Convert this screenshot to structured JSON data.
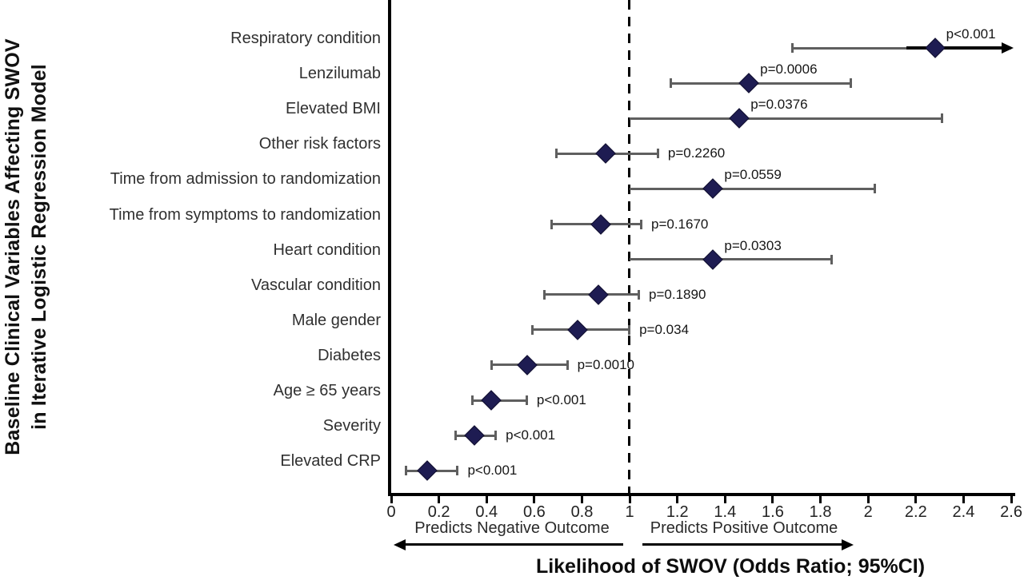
{
  "figure": {
    "y_axis_title_line1": "Baseline Clinical Variables Affecting SWOV",
    "y_axis_title_line2": "in Iterative Logistic Regression Model",
    "x_axis_title": "Likelihood of SWOV (Odds Ratio; 95%CI)",
    "negative_label": "Predicts Negative Outcome",
    "positive_label": "Predicts Positive Outcome"
  },
  "colors": {
    "diamond": "#1e1c52",
    "ci_line": "#5f5f5f",
    "axis": "#000000",
    "text": "#303030"
  },
  "chart_data": {
    "type": "scatter",
    "variant": "forest-plot",
    "title": "",
    "xlabel": "Likelihood of SWOV (Odds Ratio; 95%CI)",
    "ylabel": "Baseline Clinical Variables Affecting SWOV in Iterative Logistic Regression Model",
    "xlim": [
      0,
      2.6
    ],
    "x_ticks": [
      {
        "value": 0,
        "label": "0"
      },
      {
        "value": 0.2,
        "label": "0.2"
      },
      {
        "value": 0.4,
        "label": "0.4"
      },
      {
        "value": 0.6,
        "label": "0.6"
      },
      {
        "value": 0.8,
        "label": "0.8"
      },
      {
        "value": 1,
        "label": "1"
      },
      {
        "value": 1.2,
        "label": "1.2"
      },
      {
        "value": 1.4,
        "label": "1.4"
      },
      {
        "value": 1.6,
        "label": "1.6"
      },
      {
        "value": 1.8,
        "label": "1.8"
      },
      {
        "value": 2,
        "label": "2"
      },
      {
        "value": 2.2,
        "label": "2.2"
      },
      {
        "value": 2.4,
        "label": "2.4"
      },
      {
        "value": 2.6,
        "label": "2.6"
      }
    ],
    "reference_line_x": 1,
    "grid": false,
    "legend": "none",
    "rows": [
      {
        "label": "Respiratory condition",
        "or": 2.28,
        "ci_low": 1.68,
        "ci_high": 2.6,
        "ci_high_offscale": true,
        "p": "p<0.001",
        "p_pos": "above",
        "cap_low": true,
        "cap_high": false,
        "arrow_from": 2.16
      },
      {
        "label": "Lenzilumab",
        "or": 1.5,
        "ci_low": 1.17,
        "ci_high": 1.93,
        "ci_high_offscale": false,
        "p": "p=0.0006",
        "p_pos": "above",
        "cap_low": true,
        "cap_high": true
      },
      {
        "label": "Elevated BMI",
        "or": 1.46,
        "ci_low": 1.0,
        "ci_high": 2.31,
        "ci_high_offscale": false,
        "p": "p=0.0376",
        "p_pos": "above",
        "cap_low": false,
        "cap_high": true
      },
      {
        "label": "Other risk factors",
        "or": 0.9,
        "ci_low": 0.69,
        "ci_high": 1.12,
        "ci_high_offscale": false,
        "p": "p=0.2260",
        "p_pos": "right",
        "cap_low": true,
        "cap_high": true
      },
      {
        "label": "Time from admission to randomization",
        "or": 1.35,
        "ci_low": 1.0,
        "ci_high": 2.03,
        "ci_high_offscale": false,
        "p": "p=0.0559",
        "p_pos": "above",
        "cap_low": false,
        "cap_high": true
      },
      {
        "label": "Time from symptoms to randomization",
        "or": 0.88,
        "ci_low": 0.67,
        "ci_high": 1.05,
        "ci_high_offscale": false,
        "p": "p=0.1670",
        "p_pos": "right",
        "cap_low": true,
        "cap_high": true
      },
      {
        "label": "Heart condition",
        "or": 1.35,
        "ci_low": 1.0,
        "ci_high": 1.85,
        "ci_high_offscale": false,
        "p": "p=0.0303",
        "p_pos": "above",
        "cap_low": false,
        "cap_high": true
      },
      {
        "label": "Vascular condition",
        "or": 0.87,
        "ci_low": 0.64,
        "ci_high": 1.04,
        "ci_high_offscale": false,
        "p": "p=0.1890",
        "p_pos": "right",
        "cap_low": true,
        "cap_high": true
      },
      {
        "label": "Male gender",
        "or": 0.78,
        "ci_low": 0.59,
        "ci_high": 1.0,
        "ci_high_offscale": false,
        "p": "p=0.034",
        "p_pos": "right",
        "cap_low": true,
        "cap_high": true
      },
      {
        "label": "Diabetes",
        "or": 0.57,
        "ci_low": 0.42,
        "ci_high": 0.74,
        "ci_high_offscale": false,
        "p": "p=0.0010",
        "p_pos": "right",
        "cap_low": true,
        "cap_high": true
      },
      {
        "label": "Age ≥ 65 years",
        "or": 0.42,
        "ci_low": 0.34,
        "ci_high": 0.57,
        "ci_high_offscale": false,
        "p": "p<0.001",
        "p_pos": "right",
        "cap_low": true,
        "cap_high": true
      },
      {
        "label": "Severity",
        "or": 0.35,
        "ci_low": 0.27,
        "ci_high": 0.44,
        "ci_high_offscale": false,
        "p": "p<0.001",
        "p_pos": "right",
        "cap_low": true,
        "cap_high": true
      },
      {
        "label": "Elevated CRP",
        "or": 0.15,
        "ci_low": 0.06,
        "ci_high": 0.28,
        "ci_high_offscale": false,
        "p": "p<0.001",
        "p_pos": "right",
        "cap_low": true,
        "cap_high": true
      }
    ]
  }
}
